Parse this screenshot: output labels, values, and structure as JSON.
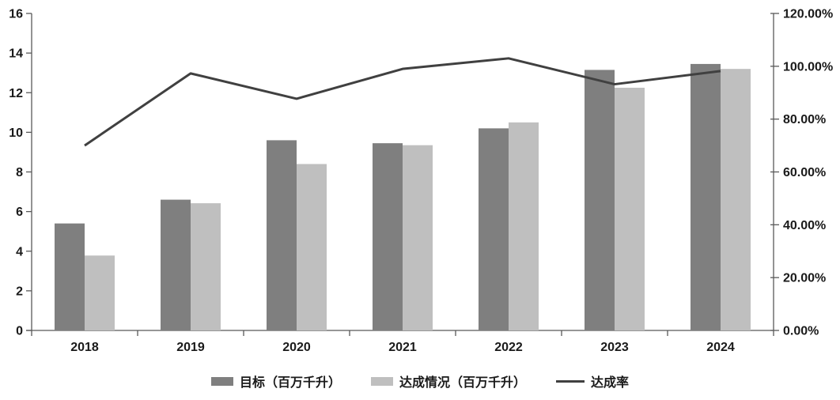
{
  "chart_data": {
    "type": "combo",
    "title": "",
    "categories": [
      "2018",
      "2019",
      "2020",
      "2021",
      "2022",
      "2023",
      "2024"
    ],
    "series": [
      {
        "name": "目标（百万千升）",
        "type": "bar",
        "axis": "left",
        "color": "#7f7f7f",
        "values": [
          5.4,
          6.6,
          9.6,
          9.45,
          10.2,
          13.15,
          13.45
        ]
      },
      {
        "name": "达成情况（百万千升）",
        "type": "bar",
        "axis": "left",
        "color": "#bfbfbf",
        "values": [
          3.78,
          6.42,
          8.4,
          9.35,
          10.5,
          12.25,
          13.2
        ]
      },
      {
        "name": "达成率",
        "type": "line",
        "axis": "right",
        "color": "#404040",
        "values": [
          70.0,
          97.3,
          87.7,
          99.0,
          103.0,
          93.2,
          98.2
        ]
      }
    ],
    "y_left": {
      "min": 0,
      "max": 16,
      "step": 2
    },
    "y_right": {
      "min": 0,
      "max": 120,
      "step": 20,
      "decimals": 2,
      "suffix": "%"
    },
    "grid": false,
    "legend_position": "bottom",
    "background": "#ffffff",
    "axis_color": "#595959",
    "text_color": "#1a1a1a"
  }
}
